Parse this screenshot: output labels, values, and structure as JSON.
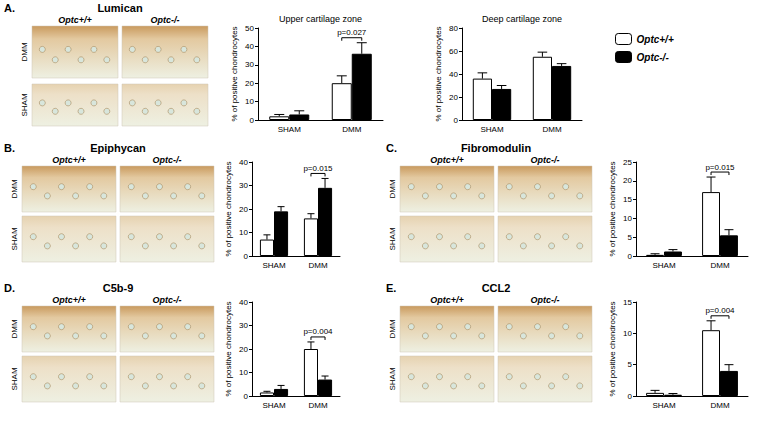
{
  "chart_data": [
    {
      "type": "bar",
      "title": "Upper cartilage zone",
      "y_label": "% of positive chondrocytes",
      "categories": [
        "SHAM",
        "DMM"
      ],
      "series": [
        {
          "name": "Optc+/+",
          "color": "#ffffff",
          "values": [
            2,
            20
          ],
          "errors": [
            1,
            4
          ]
        },
        {
          "name": "Optc-/-",
          "color": "#000000",
          "values": [
            3,
            36
          ],
          "errors": [
            2,
            6
          ]
        }
      ],
      "ylim": [
        0,
        50
      ],
      "yticks": [
        0,
        10,
        20,
        30,
        40,
        50
      ],
      "grid": false,
      "annotations": [
        {
          "text": "p=0.027",
          "category": "DMM"
        }
      ]
    },
    {
      "type": "bar",
      "title": "Deep cartilage zone",
      "y_label": "% of positive chondrocytes",
      "categories": [
        "SHAM",
        "DMM"
      ],
      "series": [
        {
          "name": "Optc+/+",
          "color": "#ffffff",
          "values": [
            36,
            55
          ],
          "errors": [
            5,
            4
          ]
        },
        {
          "name": "Optc-/-",
          "color": "#000000",
          "values": [
            27,
            47
          ],
          "errors": [
            3,
            2
          ]
        }
      ],
      "ylim": [
        0,
        80
      ],
      "yticks": [
        0,
        20,
        40,
        60,
        80
      ],
      "grid": false,
      "legend": "right"
    },
    {
      "type": "bar",
      "y_label": "% of positive chondrocytes",
      "categories": [
        "SHAM",
        "DMM"
      ],
      "series": [
        {
          "name": "Optc+/+",
          "color": "#ffffff",
          "values": [
            7,
            16
          ],
          "errors": [
            2,
            2
          ]
        },
        {
          "name": "Optc-/-",
          "color": "#000000",
          "values": [
            19,
            29
          ],
          "errors": [
            2,
            4
          ]
        }
      ],
      "ylim": [
        0,
        40
      ],
      "yticks": [
        0,
        10,
        20,
        30,
        40
      ],
      "grid": false,
      "annotations": [
        {
          "text": "p=0.015",
          "category": "DMM"
        }
      ]
    },
    {
      "type": "bar",
      "y_label": "% of positive chondrocytes",
      "categories": [
        "SHAM",
        "DMM"
      ],
      "series": [
        {
          "name": "Optc+/+",
          "color": "#ffffff",
          "values": [
            0.3,
            17
          ],
          "errors": [
            0.3,
            4
          ]
        },
        {
          "name": "Optc-/-",
          "color": "#000000",
          "values": [
            1.2,
            5.5
          ],
          "errors": [
            0.5,
            1.5
          ]
        }
      ],
      "ylim": [
        0,
        25
      ],
      "yticks": [
        0,
        5,
        10,
        15,
        20,
        25
      ],
      "grid": false,
      "annotations": [
        {
          "text": "p=0.015",
          "category": "DMM"
        }
      ]
    },
    {
      "type": "bar",
      "y_label": "% of positive chondrocytes",
      "categories": [
        "SHAM",
        "DMM"
      ],
      "series": [
        {
          "name": "Optc+/+",
          "color": "#ffffff",
          "values": [
            1.5,
            20
          ],
          "errors": [
            0.5,
            3
          ]
        },
        {
          "name": "Optc-/-",
          "color": "#000000",
          "values": [
            3,
            7
          ],
          "errors": [
            1.5,
            1.5
          ]
        }
      ],
      "ylim": [
        0,
        40
      ],
      "yticks": [
        0,
        10,
        20,
        30,
        40
      ],
      "grid": false,
      "annotations": [
        {
          "text": "p=0.004",
          "category": "DMM"
        }
      ]
    },
    {
      "type": "bar",
      "y_label": "% of positive chondrocytes",
      "categories": [
        "SHAM",
        "DMM"
      ],
      "series": [
        {
          "name": "Optc+/+",
          "color": "#ffffff",
          "values": [
            0.5,
            10.5
          ],
          "errors": [
            0.4,
            1.5
          ]
        },
        {
          "name": "Optc-/-",
          "color": "#000000",
          "values": [
            0.2,
            4
          ],
          "errors": [
            0.2,
            1
          ]
        }
      ],
      "ylim": [
        0,
        15
      ],
      "yticks": [
        0,
        5,
        10,
        15
      ],
      "grid": false,
      "annotations": [
        {
          "text": "p=0.004",
          "category": "DMM"
        }
      ]
    }
  ],
  "panels": [
    {
      "label": "A.",
      "title": "Lumican",
      "columns": [
        "Optc+/+",
        "Optc-/-"
      ],
      "rows": [
        "DMM",
        "SHAM"
      ]
    },
    {
      "label": "B.",
      "title": "Epiphycan",
      "columns": [
        "Optc+/+",
        "Optc-/-"
      ],
      "rows": [
        "DMM",
        "SHAM"
      ]
    },
    {
      "label": "C.",
      "title": "Fibromodulin",
      "columns": [
        "Optc+/+",
        "Optc-/-"
      ],
      "rows": [
        "DMM",
        "SHAM"
      ]
    },
    {
      "label": "D.",
      "title": "C5b-9",
      "columns": [
        "Optc+/+",
        "Optc-/-"
      ],
      "rows": [
        "DMM",
        "SHAM"
      ]
    },
    {
      "label": "E.",
      "title": "CCL2",
      "columns": [
        "Optc+/+",
        "Optc-/-"
      ],
      "rows": [
        "DMM",
        "SHAM"
      ]
    }
  ]
}
